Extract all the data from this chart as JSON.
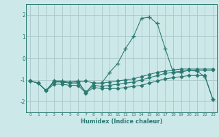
{
  "xlabel": "Humidex (Indice chaleur)",
  "background_color": "#cde8e8",
  "grid_color": "#aac8c8",
  "line_color": "#2a7a72",
  "xlim": [
    -0.5,
    23.5
  ],
  "ylim": [
    -2.5,
    2.5
  ],
  "yticks": [
    -2,
    -1,
    0,
    1,
    2
  ],
  "xticks": [
    0,
    1,
    2,
    3,
    4,
    5,
    6,
    7,
    8,
    9,
    10,
    11,
    12,
    13,
    14,
    15,
    16,
    17,
    18,
    19,
    20,
    21,
    22,
    23
  ],
  "lines": [
    {
      "x": [
        0,
        1,
        2,
        3,
        4,
        5,
        6,
        7,
        8,
        9,
        10,
        11,
        12,
        13,
        14,
        15,
        16,
        17,
        18,
        19,
        20,
        21,
        22,
        23
      ],
      "y": [
        -1.05,
        -1.15,
        -1.5,
        -1.05,
        -1.05,
        -1.1,
        -1.05,
        -1.6,
        -1.15,
        -1.15,
        -0.65,
        -0.25,
        0.45,
        1.0,
        1.85,
        1.9,
        1.6,
        0.45,
        -0.65,
        -0.65,
        -0.55,
        -0.6,
        -0.85,
        -1.9
      ],
      "marker": "+"
    },
    {
      "x": [
        0,
        1,
        2,
        3,
        4,
        5,
        6,
        7,
        8,
        9,
        10,
        11,
        12,
        13,
        14,
        15,
        16,
        17,
        18,
        19,
        20,
        21,
        22,
        23
      ],
      "y": [
        -1.05,
        -1.15,
        -1.5,
        -1.05,
        -1.1,
        -1.1,
        -1.1,
        -1.05,
        -1.15,
        -1.15,
        -1.1,
        -1.05,
        -1.0,
        -0.95,
        -0.85,
        -0.75,
        -0.65,
        -0.6,
        -0.55,
        -0.5,
        -0.5,
        -0.5,
        -0.5,
        -0.5
      ],
      "marker": "+"
    },
    {
      "x": [
        0,
        1,
        2,
        3,
        4,
        5,
        6,
        7,
        8,
        9,
        10,
        11,
        12,
        13,
        14,
        15,
        16,
        17,
        18,
        19,
        20,
        21,
        22,
        23
      ],
      "y": [
        -1.05,
        -1.15,
        -1.5,
        -1.1,
        -1.1,
        -1.15,
        -1.15,
        -1.55,
        -1.25,
        -1.3,
        -1.25,
        -1.2,
        -1.15,
        -1.1,
        -1.0,
        -0.9,
        -0.8,
        -0.7,
        -0.65,
        -0.6,
        -0.55,
        -0.55,
        -0.55,
        -0.55
      ],
      "marker": "+"
    },
    {
      "x": [
        0,
        1,
        2,
        3,
        4,
        5,
        6,
        7,
        8,
        9,
        10,
        11,
        12,
        13,
        14,
        15,
        16,
        17,
        18,
        19,
        20,
        21,
        22,
        23
      ],
      "y": [
        -1.05,
        -1.15,
        -1.5,
        -1.2,
        -1.2,
        -1.25,
        -1.25,
        -1.6,
        -1.35,
        -1.4,
        -1.4,
        -1.4,
        -1.35,
        -1.3,
        -1.25,
        -1.15,
        -1.05,
        -0.95,
        -0.9,
        -0.85,
        -0.8,
        -0.8,
        -0.8,
        -1.9
      ],
      "marker": "+"
    }
  ]
}
